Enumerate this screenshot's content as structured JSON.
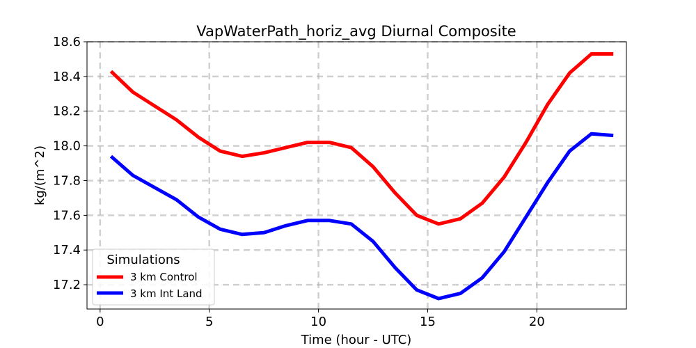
{
  "chart_data": {
    "type": "line",
    "title": "VapWaterPath_horiz_avg Diurnal Composite",
    "xlabel": "Time (hour - UTC)",
    "ylabel": "kg/(m^2)",
    "xlim": [
      -0.6,
      24.1
    ],
    "ylim": [
      17.06,
      18.6
    ],
    "xticks": [
      0,
      5,
      10,
      15,
      20
    ],
    "xtick_labels": [
      "0",
      "5",
      "10",
      "15",
      "20"
    ],
    "yticks": [
      17.2,
      17.4,
      17.6,
      17.8,
      18.0,
      18.2,
      18.4,
      18.6
    ],
    "ytick_labels": [
      "17.2",
      "17.4",
      "17.6",
      "17.8",
      "18.0",
      "18.2",
      "18.4",
      "18.6"
    ],
    "grid": true,
    "legend": {
      "title": "Simulations",
      "position": "lower-left"
    },
    "x": [
      0.5,
      1.5,
      2.5,
      3.5,
      4.5,
      5.5,
      6.5,
      7.5,
      8.5,
      9.5,
      10.5,
      11.5,
      12.5,
      13.5,
      14.5,
      15.5,
      16.5,
      17.5,
      18.5,
      19.5,
      20.5,
      21.5,
      22.5,
      23.5
    ],
    "series": [
      {
        "name": "3 km Control",
        "color": "#ff0000",
        "values": [
          18.43,
          18.31,
          18.23,
          18.15,
          18.05,
          17.97,
          17.94,
          17.96,
          17.99,
          18.02,
          18.02,
          17.99,
          17.88,
          17.73,
          17.6,
          17.55,
          17.58,
          17.67,
          17.82,
          18.02,
          18.24,
          18.42,
          18.53,
          18.53
        ]
      },
      {
        "name": "3 km Int Land",
        "color": "#0000ff",
        "values": [
          17.94,
          17.83,
          17.76,
          17.69,
          17.59,
          17.52,
          17.49,
          17.5,
          17.54,
          17.57,
          17.57,
          17.55,
          17.45,
          17.3,
          17.17,
          17.12,
          17.15,
          17.24,
          17.39,
          17.59,
          17.79,
          17.97,
          18.07,
          18.06
        ]
      }
    ]
  }
}
